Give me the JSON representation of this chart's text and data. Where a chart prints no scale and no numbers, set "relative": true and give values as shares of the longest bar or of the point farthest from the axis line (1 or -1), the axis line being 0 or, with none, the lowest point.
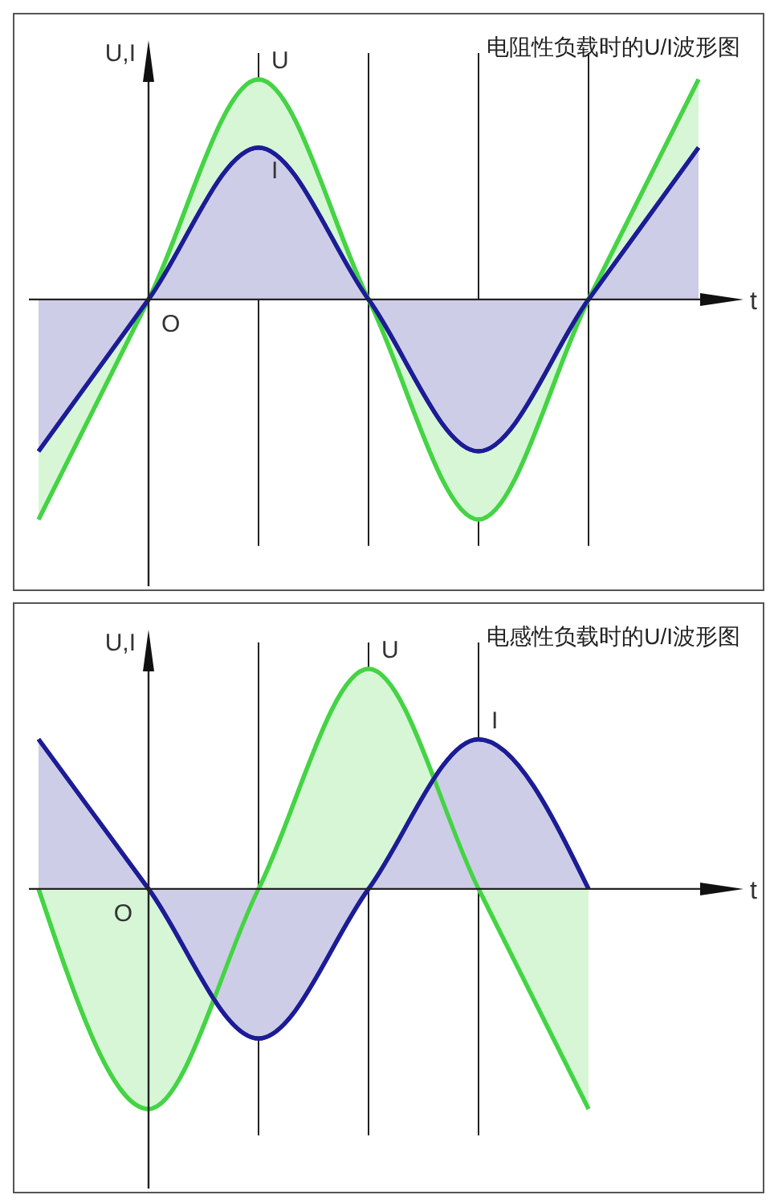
{
  "chart_data": [
    {
      "type": "area",
      "title": "电阻性负载时的U/I波形图",
      "xlabel": "t",
      "ylabel": "U,I",
      "annotations": [
        "O"
      ],
      "relative": true,
      "grid": "x",
      "categories": [
        null,
        null,
        null,
        null,
        null,
        null,
        null
      ],
      "series": [
        {
          "name": "U",
          "color": "#44d444",
          "values": [
            -1,
            0,
            1,
            0,
            -1,
            0,
            1
          ]
        },
        {
          "name": "I",
          "color": "#1c1c96",
          "values": [
            -0.69,
            0,
            0.69,
            0,
            -0.69,
            0,
            0.69
          ]
        }
      ]
    },
    {
      "type": "area",
      "title": "电感性负载时的U/I波形图",
      "xlabel": "t",
      "ylabel": "U,I",
      "annotations": [
        "O"
      ],
      "relative": true,
      "grid": "x",
      "categories": [
        null,
        null,
        null,
        null,
        null,
        null
      ],
      "series": [
        {
          "name": "U",
          "color": "#44d444",
          "values": [
            0,
            -1,
            0,
            1,
            0,
            -1
          ]
        },
        {
          "name": "I",
          "color": "#1c1c96",
          "values": [
            0.68,
            0,
            -0.68,
            0,
            0.68,
            0
          ]
        }
      ]
    }
  ]
}
